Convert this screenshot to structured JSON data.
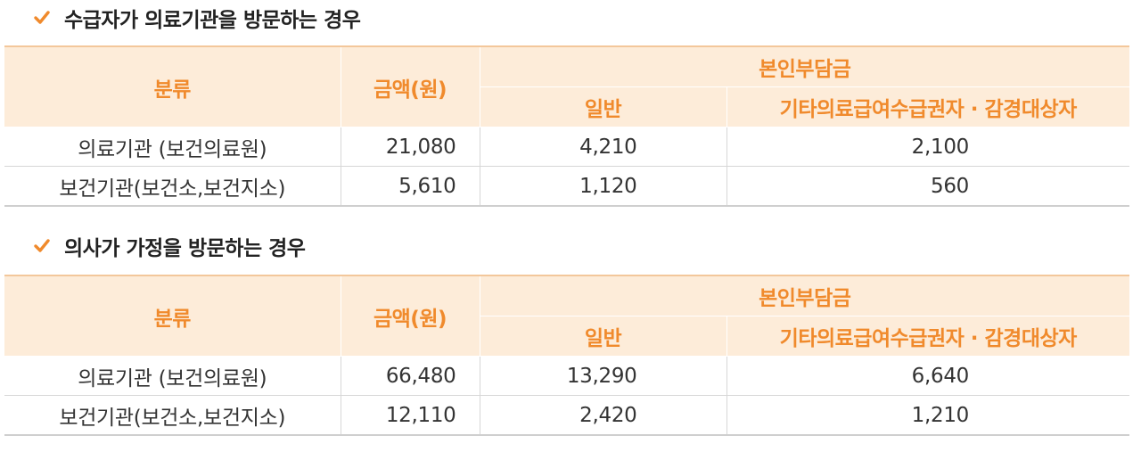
{
  "sections": [
    {
      "heading": "수급자가 의료기관을 방문하는 경우",
      "header": {
        "category": "분류",
        "amount": "금액(원)",
        "copay": "본인부담금",
        "general": "일반",
        "other": "기타의료급여수급권자 · 감경대상자"
      },
      "rows": [
        {
          "category": "의료기관 (보건의료원)",
          "amount": "21,080",
          "general": "4,210",
          "other": "2,100"
        },
        {
          "category": "보건기관(보건소,보건지소)",
          "amount": "5,610",
          "general": "1,120",
          "other": "560"
        }
      ]
    },
    {
      "heading": "의사가 가정을 방문하는 경우",
      "header": {
        "category": "분류",
        "amount": "금액(원)",
        "copay": "본인부담금",
        "general": "일반",
        "other": "기타의료급여수급권자 · 감경대상자"
      },
      "rows": [
        {
          "category": "의료기관 (보건의료원)",
          "amount": "66,480",
          "general": "13,290",
          "other": "6,640"
        },
        {
          "category": "보건기관(보건소,보건지소)",
          "amount": "12,110",
          "general": "2,420",
          "other": "1,210"
        }
      ]
    }
  ],
  "colors": {
    "accent": "#f08a2c",
    "header_bg": "#fdecd9"
  },
  "icons": {
    "heading_marker": "check-icon"
  }
}
